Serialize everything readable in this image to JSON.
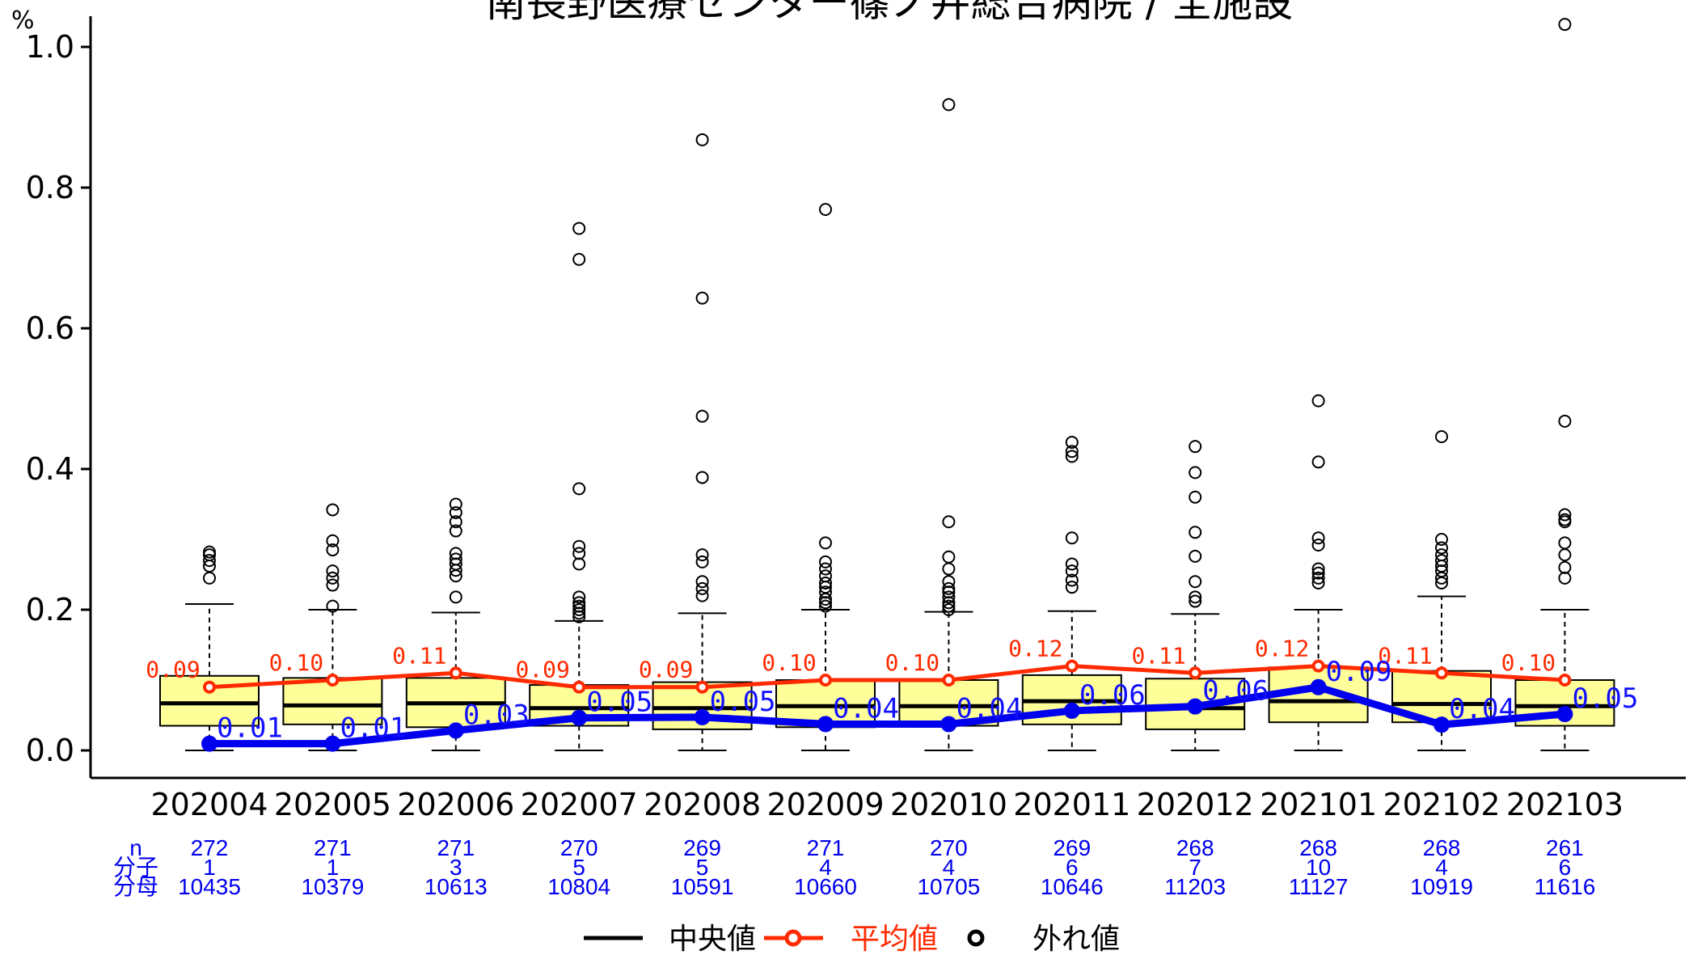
{
  "chart_data": {
    "type": "box",
    "title": "南長野医療センター篠ノ井総合病院 / 全施設",
    "ylabel": "%",
    "ylim": [
      0,
      1.0
    ],
    "yticks": [
      "0.0",
      "0.2",
      "0.4",
      "0.6",
      "0.8",
      "1.0"
    ],
    "categories": [
      "202004",
      "202005",
      "202006",
      "202007",
      "202008",
      "202009",
      "202010",
      "202011",
      "202012",
      "202101",
      "202102",
      "202103"
    ],
    "info_labels": {
      "n": "n",
      "numerator": "分子",
      "denominator": "分母"
    },
    "n": [
      "272",
      "271",
      "271",
      "270",
      "269",
      "271",
      "270",
      "269",
      "268",
      "268",
      "268",
      "261"
    ],
    "numerator": [
      "1",
      "1",
      "3",
      "5",
      "5",
      "4",
      "4",
      "6",
      "7",
      "10",
      "4",
      "6"
    ],
    "denominator": [
      "10435",
      "10379",
      "10613",
      "10804",
      "10591",
      "10660",
      "10705",
      "10646",
      "11203",
      "11127",
      "10919",
      "11616"
    ],
    "boxes": [
      {
        "q1": 0.035,
        "median": 0.067,
        "q3": 0.106,
        "whisker_low": 0.0,
        "whisker_high": 0.208,
        "outliers": [
          0.245,
          0.262,
          0.27,
          0.278,
          0.282
        ]
      },
      {
        "q1": 0.037,
        "median": 0.064,
        "q3": 0.103,
        "whisker_low": 0.0,
        "whisker_high": 0.2,
        "outliers": [
          0.205,
          0.235,
          0.245,
          0.255,
          0.285,
          0.298,
          0.342
        ]
      },
      {
        "q1": 0.033,
        "median": 0.067,
        "q3": 0.103,
        "whisker_low": 0.0,
        "whisker_high": 0.196,
        "outliers": [
          0.218,
          0.248,
          0.256,
          0.265,
          0.272,
          0.28,
          0.312,
          0.325,
          0.338,
          0.35
        ]
      },
      {
        "q1": 0.035,
        "median": 0.06,
        "q3": 0.093,
        "whisker_low": 0.0,
        "whisker_high": 0.184,
        "outliers": [
          0.19,
          0.195,
          0.2,
          0.205,
          0.21,
          0.218,
          0.265,
          0.28,
          0.29,
          0.372,
          0.698,
          0.742
        ]
      },
      {
        "q1": 0.03,
        "median": 0.06,
        "q3": 0.097,
        "whisker_low": 0.0,
        "whisker_high": 0.195,
        "outliers": [
          0.22,
          0.23,
          0.24,
          0.268,
          0.278,
          0.388,
          0.475,
          0.643,
          0.868
        ]
      },
      {
        "q1": 0.033,
        "median": 0.063,
        "q3": 0.1,
        "whisker_low": 0.0,
        "whisker_high": 0.2,
        "outliers": [
          0.205,
          0.21,
          0.215,
          0.225,
          0.232,
          0.238,
          0.248,
          0.258,
          0.268,
          0.295,
          0.769
        ]
      },
      {
        "q1": 0.035,
        "median": 0.063,
        "q3": 0.1,
        "whisker_low": 0.0,
        "whisker_high": 0.197,
        "outliers": [
          0.2,
          0.205,
          0.21,
          0.218,
          0.225,
          0.23,
          0.24,
          0.258,
          0.275,
          0.325,
          0.918
        ]
      },
      {
        "q1": 0.037,
        "median": 0.07,
        "q3": 0.107,
        "whisker_low": 0.0,
        "whisker_high": 0.198,
        "outliers": [
          0.232,
          0.242,
          0.255,
          0.265,
          0.302,
          0.418,
          0.425,
          0.438
        ]
      },
      {
        "q1": 0.03,
        "median": 0.06,
        "q3": 0.102,
        "whisker_low": 0.0,
        "whisker_high": 0.194,
        "outliers": [
          0.212,
          0.218,
          0.24,
          0.276,
          0.31,
          0.36,
          0.395,
          0.432
        ]
      },
      {
        "q1": 0.04,
        "median": 0.07,
        "q3": 0.118,
        "whisker_low": 0.0,
        "whisker_high": 0.2,
        "outliers": [
          0.238,
          0.245,
          0.252,
          0.258,
          0.292,
          0.302,
          0.41,
          0.497
        ]
      },
      {
        "q1": 0.04,
        "median": 0.066,
        "q3": 0.113,
        "whisker_low": 0.0,
        "whisker_high": 0.219,
        "outliers": [
          0.238,
          0.245,
          0.255,
          0.262,
          0.27,
          0.278,
          0.288,
          0.3,
          0.446
        ]
      },
      {
        "q1": 0.035,
        "median": 0.063,
        "q3": 0.1,
        "whisker_low": 0.0,
        "whisker_high": 0.2,
        "outliers": [
          0.245,
          0.26,
          0.278,
          0.295,
          0.325,
          0.328,
          0.335,
          0.468,
          1.032
        ]
      }
    ],
    "series": [
      {
        "name": "平均値",
        "values": [
          0.09,
          0.1,
          0.11,
          0.09,
          0.09,
          0.1,
          0.1,
          0.12,
          0.11,
          0.12,
          0.11,
          0.1
        ],
        "labels": [
          "0.09",
          "0.10",
          "0.11",
          "0.09",
          "0.09",
          "0.10",
          "0.10",
          "0.12",
          "0.11",
          "0.12",
          "0.11",
          "0.10"
        ]
      },
      {
        "values": [
          0.0096,
          0.0096,
          0.0283,
          0.0463,
          0.0472,
          0.0375,
          0.0374,
          0.0564,
          0.0625,
          0.0899,
          0.0366,
          0.0517
        ],
        "labels": [
          "0.01",
          "0.01",
          "0.03",
          "0.05",
          "0.05",
          "0.04",
          "0.04",
          "0.06",
          "0.06",
          "0.09",
          "0.04",
          "0.05"
        ]
      }
    ],
    "legend": {
      "placement": "bottom",
      "items": [
        {
          "label": "中央値",
          "color": "#000000"
        },
        {
          "label": "平均値",
          "color": "#ff2a00"
        },
        {
          "label": "外れ値",
          "color": "#000000"
        }
      ]
    },
    "colors": {
      "box_fill": "#ffff99",
      "mean": "#ff2a00",
      "facility": "#0000ee",
      "info_text": "#0000ee"
    }
  }
}
